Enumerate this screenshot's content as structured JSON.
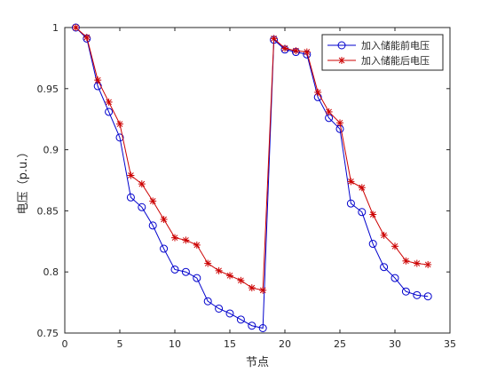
{
  "chart_data": {
    "type": "line",
    "title": "",
    "xlabel": "节点",
    "ylabel": "电压（p.u.）",
    "xlim": [
      0,
      35
    ],
    "ylim": [
      0.75,
      1
    ],
    "xticks": [
      0,
      5,
      10,
      15,
      20,
      25,
      30,
      35
    ],
    "yticks": [
      0.75,
      0.8,
      0.85,
      0.9,
      0.95,
      1
    ],
    "xtick_labels": [
      "0",
      "5",
      "10",
      "15",
      "20",
      "25",
      "30",
      "35"
    ],
    "ytick_labels": [
      "0.75",
      "0.8",
      "0.85",
      "0.9",
      "0.95",
      "1"
    ],
    "grid": false,
    "legend_position": "top-right",
    "x": [
      1,
      2,
      3,
      4,
      5,
      6,
      7,
      8,
      9,
      10,
      11,
      12,
      13,
      14,
      15,
      16,
      17,
      18,
      19,
      20,
      21,
      22,
      23,
      24,
      25,
      26,
      27,
      28,
      29,
      30,
      31,
      32,
      33
    ],
    "series": [
      {
        "name": "加入储能前电压",
        "color": "#0000cc",
        "marker": "circle",
        "values": [
          1.0,
          0.991,
          0.952,
          0.931,
          0.91,
          0.861,
          0.853,
          0.838,
          0.819,
          0.802,
          0.8,
          0.795,
          0.776,
          0.77,
          0.766,
          0.761,
          0.756,
          0.754,
          0.99,
          0.982,
          0.98,
          0.978,
          0.943,
          0.926,
          0.917,
          0.856,
          0.849,
          0.823,
          0.804,
          0.795,
          0.784,
          0.781,
          0.78
        ]
      },
      {
        "name": "加入储能后电压",
        "color": "#cc0000",
        "marker": "asterisk",
        "values": [
          1.0,
          0.992,
          0.957,
          0.939,
          0.921,
          0.879,
          0.872,
          0.858,
          0.843,
          0.828,
          0.826,
          0.822,
          0.807,
          0.801,
          0.797,
          0.793,
          0.787,
          0.785,
          0.991,
          0.983,
          0.981,
          0.98,
          0.947,
          0.931,
          0.922,
          0.874,
          0.869,
          0.847,
          0.83,
          0.821,
          0.809,
          0.807,
          0.806
        ]
      }
    ]
  }
}
